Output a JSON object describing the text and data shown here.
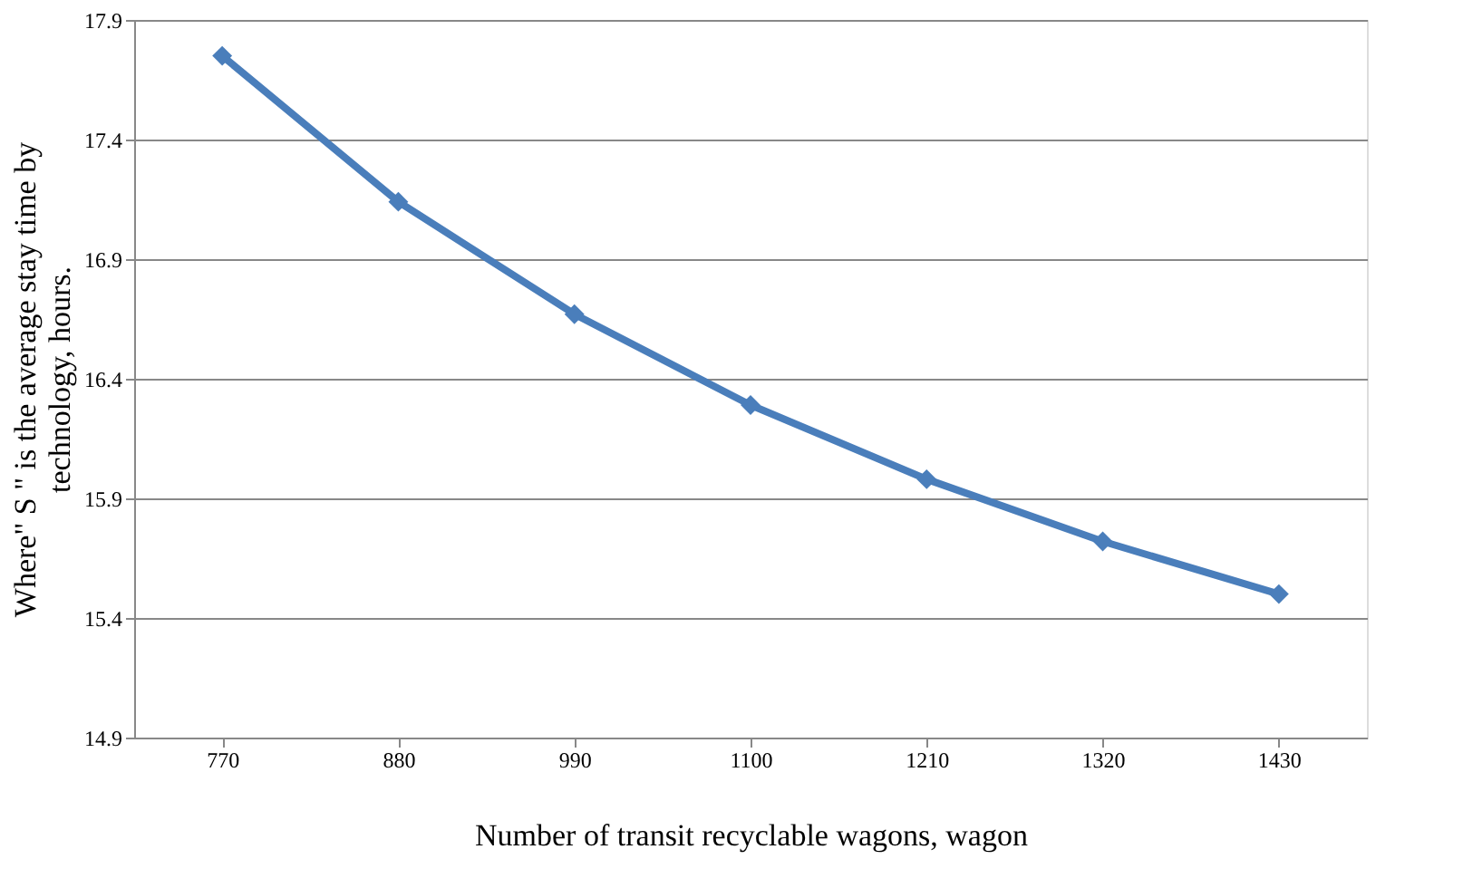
{
  "chart_data": {
    "type": "line",
    "xlabel": "Number of transit recyclable wagons, wagon",
    "ylabel": "Where\" S \" is the average stay time by\ntechnology, hours.",
    "categories": [
      "770",
      "880",
      "990",
      "1100",
      "1210",
      "1320",
      "1430"
    ],
    "series": [
      {
        "color": "#4a7ebb",
        "values": [
          17.75,
          17.14,
          16.67,
          16.29,
          15.98,
          15.72,
          15.5
        ]
      }
    ],
    "ylim": [
      14.9,
      17.9
    ],
    "yticks": [
      14.9,
      15.4,
      15.9,
      16.4,
      16.9,
      17.4,
      17.9
    ],
    "grid": "y",
    "marker": "diamond",
    "line_style": "solid"
  }
}
